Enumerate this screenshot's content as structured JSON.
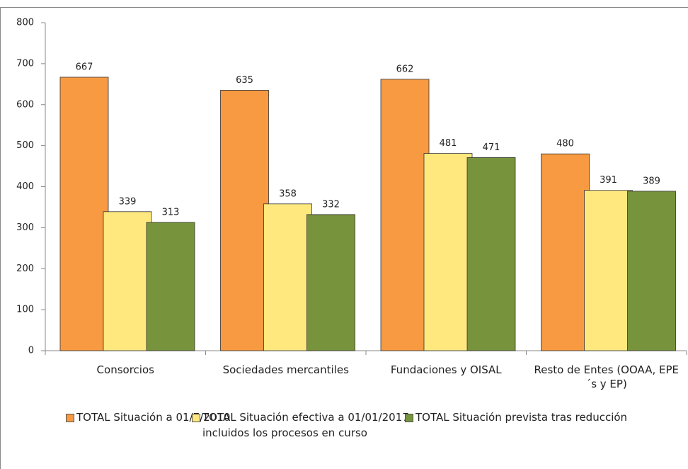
{
  "chart_data": {
    "type": "bar",
    "categories": [
      "Consorcios",
      "Sociedades mercantiles",
      "Fundaciones y OISAL",
      "Resto de Entes (OOAA, EPE´s y EP)"
    ],
    "series": [
      {
        "name": "TOTAL Situación a 01/7/2010",
        "color": "#f79a42",
        "values": [
          667,
          635,
          662,
          480
        ]
      },
      {
        "name": "TOTAL Situación efectiva a 01/01/2017\nincluidos los procesos en curso",
        "color": "#ffe97f",
        "values": [
          339,
          358,
          481,
          391
        ]
      },
      {
        "name": "TOTAL Situación prevista tras reducción",
        "color": "#77933c",
        "values": [
          313,
          332,
          471,
          389
        ]
      }
    ],
    "ylim": [
      0,
      800
    ],
    "yticks": [
      0,
      100,
      200,
      300,
      400,
      500,
      600,
      700,
      800
    ],
    "legend": "bottom"
  }
}
